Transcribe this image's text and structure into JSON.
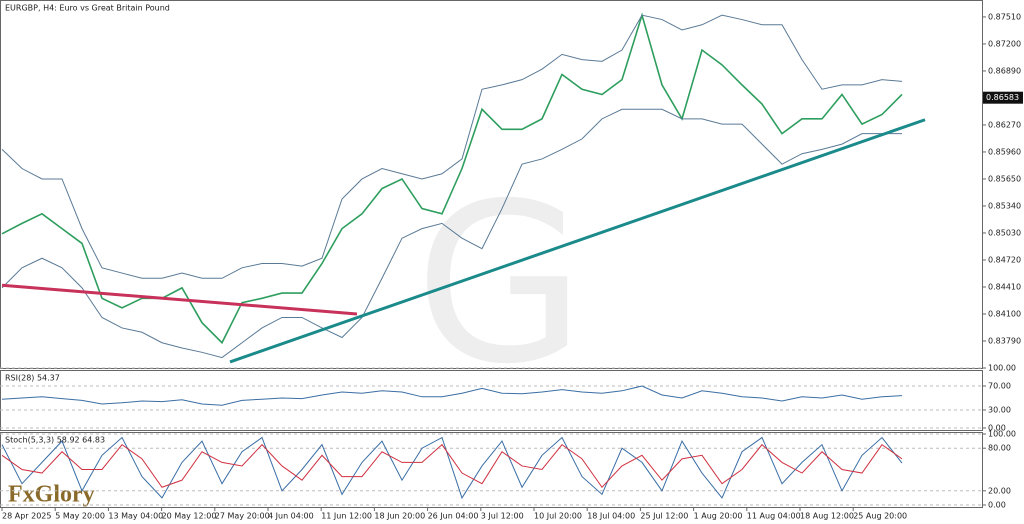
{
  "chart_data": [
    {
      "type": "line",
      "title": "EURGBP, H4:  Euro vs Great Britain Pound",
      "logo": "FxGlory",
      "x_labels": [
        "28 Apr 2025",
        "5 May 20:00",
        "13 May 04:00",
        "20 May 12:00",
        "27 May 20:00",
        "4 Jun 04:00",
        "11 Jun 12:00",
        "18 Jun 20:00",
        "26 Jun 04:00",
        "3 Jul 12:00",
        "10 Jul 20:00",
        "18 Jul 04:00",
        "25 Jul 12:00",
        "1 Aug 20:00",
        "11 Aug 04:00",
        "18 Aug 12:00",
        "25 Aug 20:00"
      ],
      "ylim": [
        0.8348,
        0.8767
      ],
      "yticks": [
        {
          "value": 0.8751,
          "label": "0.87510"
        },
        {
          "value": 0.872,
          "label": "0.87200"
        },
        {
          "value": 0.8689,
          "label": "0.86890"
        },
        {
          "value": 0.8627,
          "label": "0.86270"
        },
        {
          "value": 0.8596,
          "label": "0.85960"
        },
        {
          "value": 0.8565,
          "label": "0.85650"
        },
        {
          "value": 0.8534,
          "label": "0.85340"
        },
        {
          "value": 0.8503,
          "label": "0.85030"
        },
        {
          "value": 0.8472,
          "label": "0.84720"
        },
        {
          "value": 0.8441,
          "label": "0.84410"
        },
        {
          "value": 0.841,
          "label": "0.84100"
        },
        {
          "value": 0.8379,
          "label": "0.83790"
        }
      ],
      "current_price": {
        "value": 0.86583,
        "label": "0.86583"
      },
      "series": [
        {
          "color": "#2e9e5e",
          "values": [
            0.8502,
            0.8514,
            0.8525,
            0.8508,
            0.8491,
            0.8428,
            0.8417,
            0.8428,
            0.8428,
            0.844,
            0.84,
            0.8377,
            0.8423,
            0.8428,
            0.8434,
            0.8434,
            0.8468,
            0.8508,
            0.8525,
            0.8554,
            0.8565,
            0.8531,
            0.8525,
            0.8577,
            0.8645,
            0.8622,
            0.8622,
            0.8634,
            0.8685,
            0.8668,
            0.8662,
            0.8679,
            0.8753,
            0.8673,
            0.8634,
            0.8713,
            0.8696,
            0.8673,
            0.8651,
            0.8617,
            0.8634,
            0.8634,
            0.8662,
            0.8628,
            0.8639,
            0.8662
          ]
        },
        {
          "color": "#5a7a96",
          "values": [
            0.8599,
            0.8577,
            0.8565,
            0.8565,
            0.8508,
            0.8463,
            0.8457,
            0.8451,
            0.8451,
            0.8457,
            0.8451,
            0.8451,
            0.8463,
            0.8468,
            0.8468,
            0.8465,
            0.8474,
            0.8542,
            0.8565,
            0.8577,
            0.8571,
            0.8565,
            0.8571,
            0.8588,
            0.8668,
            0.8673,
            0.8679,
            0.8691,
            0.8708,
            0.8702,
            0.87,
            0.8713,
            0.8753,
            0.8748,
            0.8736,
            0.8742,
            0.8753,
            0.8748,
            0.8742,
            0.8742,
            0.8702,
            0.8668,
            0.8673,
            0.8673,
            0.8679,
            0.8677
          ]
        },
        {
          "color": "#5a7a96",
          "values": [
            0.844,
            0.8463,
            0.8474,
            0.8463,
            0.844,
            0.8406,
            0.8394,
            0.8389,
            0.8377,
            0.8371,
            0.8366,
            0.836,
            0.8377,
            0.8394,
            0.8406,
            0.8406,
            0.8394,
            0.8383,
            0.8406,
            0.8451,
            0.8497,
            0.8508,
            0.8514,
            0.8497,
            0.8485,
            0.8531,
            0.8582,
            0.8588,
            0.8599,
            0.8611,
            0.8634,
            0.8645,
            0.8645,
            0.8645,
            0.8634,
            0.8634,
            0.8628,
            0.8628,
            0.8605,
            0.8582,
            0.8594,
            0.8599,
            0.8605,
            0.8617,
            0.8617,
            0.8617
          ]
        }
      ],
      "trendlines": [
        {
          "color": "#c8325a",
          "values": [
            0.8443,
            0.841
          ]
        },
        {
          "color": "#1a8a8a",
          "values": [
            0.8355,
            0.8633
          ]
        }
      ]
    },
    {
      "type": "line",
      "title": "RSI(28) 54.37",
      "ylim": [
        0,
        100
      ],
      "yticks": [
        {
          "value": 100,
          "label": "100.00"
        },
        {
          "value": 70,
          "label": "70.00"
        },
        {
          "value": 30,
          "label": "30.00"
        },
        {
          "value": 0,
          "label": "0.00"
        }
      ],
      "series": [
        {
          "color": "#3a6ea5",
          "values": [
            48,
            50,
            52,
            49,
            46,
            40,
            42,
            45,
            44,
            47,
            40,
            38,
            46,
            48,
            50,
            49,
            55,
            60,
            58,
            62,
            60,
            52,
            52,
            58,
            66,
            58,
            57,
            60,
            64,
            60,
            58,
            62,
            70,
            55,
            50,
            62,
            58,
            52,
            50,
            45,
            52,
            50,
            55,
            48,
            52,
            54
          ]
        }
      ]
    },
    {
      "type": "line",
      "title": "Stoch(5,3,3) 58.92 64.83",
      "ylim": [
        0,
        100
      ],
      "yticks": [
        {
          "value": 100,
          "label": "100.00"
        },
        {
          "value": 80,
          "label": "80.00"
        },
        {
          "value": 20,
          "label": "20.00"
        },
        {
          "value": 0,
          "label": "0.00"
        }
      ],
      "series": [
        {
          "color": "#3a6ea5",
          "values": [
            85,
            30,
            60,
            90,
            20,
            70,
            95,
            40,
            10,
            60,
            90,
            30,
            75,
            95,
            20,
            50,
            85,
            15,
            60,
            90,
            35,
            80,
            95,
            10,
            55,
            90,
            25,
            70,
            95,
            40,
            15,
            80,
            60,
            20,
            90,
            45,
            10,
            75,
            95,
            30,
            60,
            85,
            20,
            70,
            95,
            59
          ]
        },
        {
          "color": "#d03040",
          "values": [
            70,
            50,
            45,
            75,
            50,
            50,
            85,
            65,
            25,
            35,
            75,
            60,
            55,
            85,
            55,
            35,
            70,
            40,
            40,
            75,
            60,
            60,
            85,
            45,
            30,
            75,
            55,
            50,
            85,
            65,
            25,
            55,
            70,
            35,
            65,
            70,
            30,
            50,
            85,
            60,
            45,
            75,
            50,
            45,
            85,
            65
          ]
        }
      ]
    }
  ]
}
